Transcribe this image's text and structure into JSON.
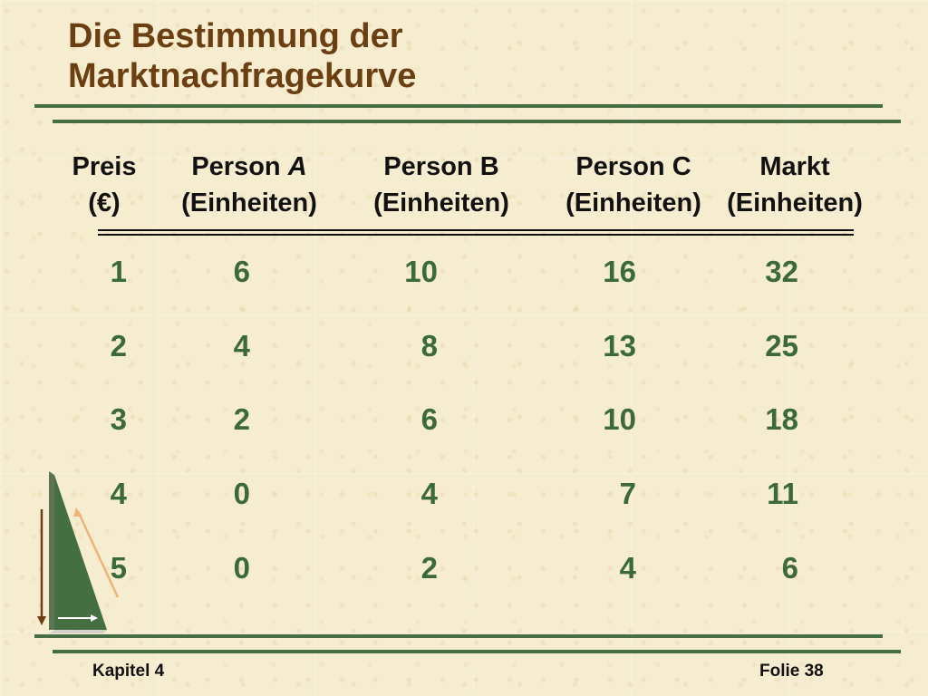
{
  "slide": {
    "title_line_1": "Die Bestimmung der",
    "title_line_2": "Marktnachfragekurve"
  },
  "table": {
    "headers": [
      {
        "line1": "Preis",
        "line2": "(€)"
      },
      {
        "line1_prefix": "Person ",
        "line1_emphasis": "A",
        "line2": "(Einheiten)"
      },
      {
        "line1": "Person B",
        "line2": "(Einheiten)"
      },
      {
        "line1": "Person C",
        "line2": "(Einheiten)"
      },
      {
        "line1": "Markt",
        "line2": "(Einheiten)"
      }
    ],
    "rows": [
      [
        "1",
        "6",
        "10",
        "16",
        "32"
      ],
      [
        "2",
        "4",
        "8",
        "13",
        "25"
      ],
      [
        "3",
        "2",
        "6",
        "10",
        "18"
      ],
      [
        "4",
        "0",
        "4",
        "7",
        "11"
      ],
      [
        "5",
        "0",
        "2",
        "4",
        "6"
      ]
    ]
  },
  "footer": {
    "left": "Kapitel 4",
    "right": "Folie 38"
  },
  "decor": {
    "icon_name": "triangle-arrows-icon",
    "accent_color": "#466d43",
    "title_color": "#6b3f11",
    "value_color": "#3b6939",
    "arrow_dark_color": "#6b3f11",
    "arrow_light_color": "#f0b27b"
  }
}
